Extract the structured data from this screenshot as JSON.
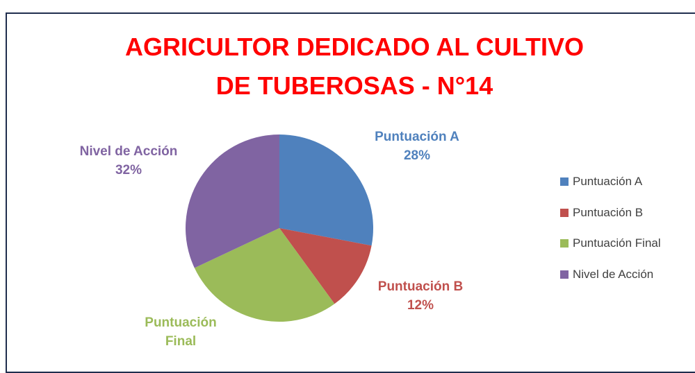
{
  "chart_data": {
    "type": "pie",
    "title": "AGRICULTOR DEDICADO AL CULTIVO DE TUBEROSAS - N°14",
    "categories": [
      "Puntuación A",
      "Puntuación B",
      "Puntuación Final",
      "Nivel de Acción"
    ],
    "values": [
      28,
      12,
      28,
      32
    ],
    "value_labels": [
      "28%",
      "12%",
      null,
      "32%"
    ],
    "colors": [
      "#4f81bd",
      "#c0504d",
      "#9bbb59",
      "#8064a2"
    ],
    "legend": "right"
  }
}
